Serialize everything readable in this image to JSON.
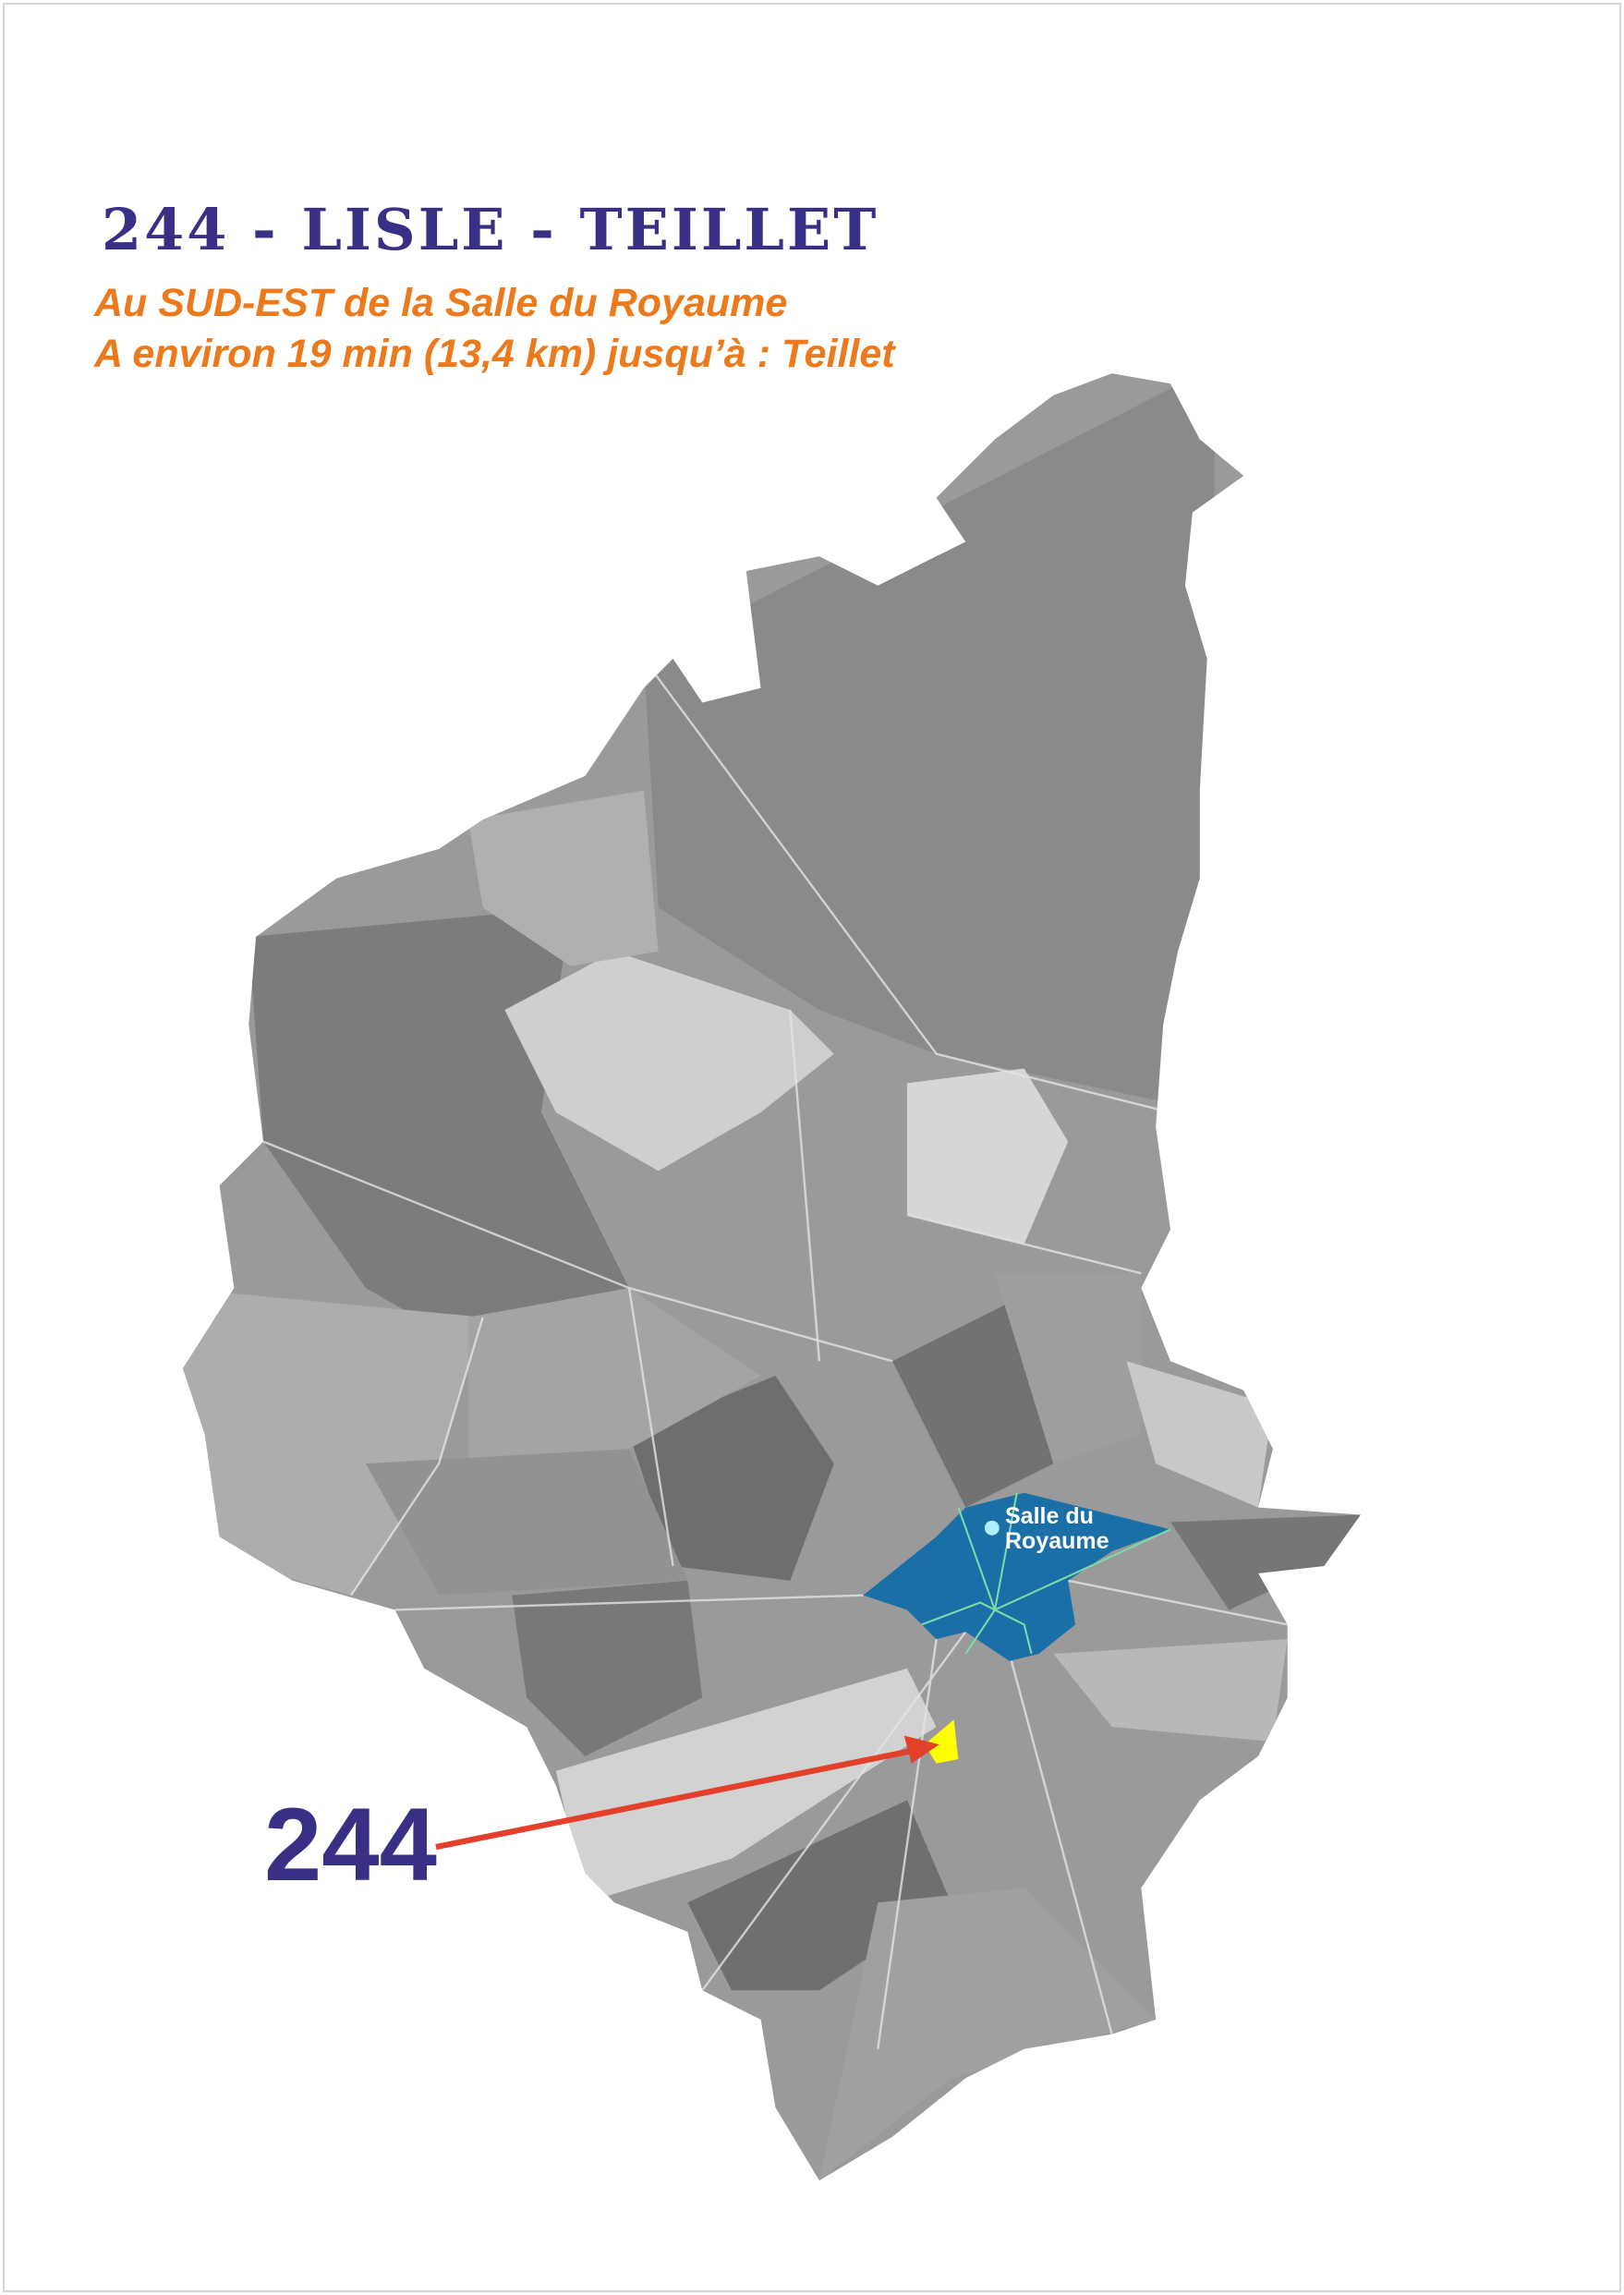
{
  "title": "244 - LISLE - TEILLET",
  "subtitle_lines": [
    "Au SUD-EST de la Salle du Royaume",
    "A environ 19 min (13,4 km) jusqu’à : Teillet"
  ],
  "territory_number": "244",
  "landmark": {
    "line1": "Salle du",
    "line2": "Royaume"
  },
  "colors": {
    "title": "#373085",
    "subtitle": "#ec7a1c",
    "highlight_area": "#1a6fa6",
    "territory": "#ffff00",
    "arrow": "#e2402a",
    "landmark_dot": "#aef0ff"
  }
}
